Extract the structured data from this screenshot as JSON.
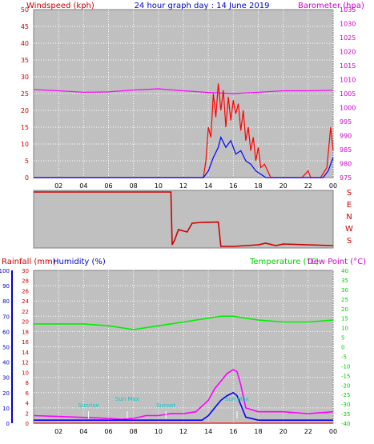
{
  "header": {
    "left_title": "Windspeed (kph)",
    "center_title": "24 hour graph day : 14 June 2019",
    "right_title": "Barometer (hpa)"
  },
  "colors": {
    "background": "#c0c0c0",
    "grid": "#ffffff",
    "wind_speed": "#ff0000",
    "wind_gust": "#ff0000",
    "wind_avg": "#0000ff",
    "barometer": "#ff00ff",
    "direction": "#cc0000",
    "rain": "#ff0000",
    "humidity": "#0000ff",
    "temperature": "#00ee00",
    "dew_point": "#ff00ff",
    "left_axis_text": "#cc0000",
    "right_axis_text": "#cc00cc",
    "temp_axis_text": "#00cc00",
    "sun_labels": "#00cccc"
  },
  "x_ticks": [
    "02",
    "04",
    "06",
    "08",
    "10",
    "12",
    "14",
    "16",
    "18",
    "20",
    "22",
    "00"
  ],
  "direction_labels": [
    "S",
    "E",
    "N",
    "W",
    "S"
  ],
  "bottom": {
    "rain_label": "Rainfall (mm)",
    "humidity_label": "Humidity (%)",
    "temp_label": "Temperature (°C)",
    "dew_label": "Dew Point (°C)",
    "sun_events": [
      {
        "label": "Sunrise",
        "hour": 4.4
      },
      {
        "label": "Sun Max",
        "hour": 7.5
      },
      {
        "label": "Sunset",
        "hour": 10.6
      },
      {
        "label": "Sun Max",
        "hour": 16.3
      }
    ]
  },
  "chart_data": [
    {
      "type": "line",
      "title": "",
      "x_range": [
        0,
        24
      ],
      "ylim_left": [
        0,
        50
      ],
      "ylim_right": [
        975,
        1035
      ],
      "yticks_left": [
        "0",
        "5",
        "10",
        "15",
        "20",
        "25",
        "30",
        "35",
        "40",
        "45",
        "50"
      ],
      "yticks_right": [
        "975",
        "980",
        "985",
        "990",
        "995",
        "1000",
        "1005",
        "1010",
        "1015",
        "1020",
        "1025",
        "1030",
        "1035"
      ],
      "series": [
        {
          "axis": "left",
          "x": [
            0,
            13.6,
            13.8,
            14.0,
            14.2,
            14.4,
            14.6,
            14.8,
            15.0,
            15.2,
            15.4,
            15.6,
            15.8,
            16.0,
            16.2,
            16.4,
            16.6,
            16.8,
            17.0,
            17.2,
            17.4,
            17.6,
            17.8,
            18.0,
            18.2,
            18.5,
            19.0,
            21.0,
            21.5,
            22.0,
            22.2,
            23.0,
            23.5,
            23.8,
            24.0
          ],
          "y": [
            0,
            0,
            5,
            15,
            12,
            25,
            18,
            28,
            20,
            26,
            15,
            24,
            17,
            23,
            19,
            22,
            14,
            20,
            11,
            15,
            8,
            12,
            5,
            9,
            3,
            4,
            0,
            0,
            0,
            2,
            0,
            0,
            3,
            15,
            8
          ]
        },
        {
          "axis": "left",
          "x": [
            0,
            13.6,
            14.0,
            14.4,
            14.8,
            15.0,
            15.4,
            15.8,
            16.2,
            16.6,
            17.0,
            17.4,
            17.8,
            18.2,
            18.6,
            19.0,
            23.2,
            23.6,
            24.0
          ],
          "y": [
            0,
            0,
            2,
            6,
            9,
            12,
            9,
            11,
            7,
            8,
            5,
            4,
            2,
            1,
            0,
            0,
            0,
            2,
            6
          ]
        },
        {
          "axis": "right",
          "x": [
            0,
            2,
            4,
            6,
            8,
            10,
            12,
            14,
            16,
            18,
            20,
            22,
            24
          ],
          "y": [
            1006.5,
            1006.0,
            1005.5,
            1005.6,
            1006.3,
            1006.7,
            1006.0,
            1005.4,
            1005.0,
            1005.5,
            1006.0,
            1006.0,
            1006.2
          ]
        }
      ]
    },
    {
      "type": "line",
      "title": "",
      "x_range": [
        0,
        24
      ],
      "ylim": [
        0,
        360
      ],
      "series": [
        {
          "x": [
            0,
            11,
            11.1,
            11.3,
            11.6,
            12.3,
            12.7,
            13.5,
            14.8,
            15.0,
            16.0,
            17.0,
            18.0,
            18.6,
            19.4,
            20.0,
            22.0,
            24.0
          ],
          "y": [
            350,
            350,
            20,
            50,
            115,
            100,
            155,
            160,
            162,
            10,
            10,
            15,
            20,
            30,
            15,
            25,
            20,
            15
          ]
        }
      ]
    },
    {
      "type": "line",
      "title": "",
      "x_range": [
        0,
        24
      ],
      "ylim_humidity": [
        0,
        100
      ],
      "ylim_rain": [
        0,
        30
      ],
      "ylim_temp": [
        -40,
        40
      ],
      "yticks_humidity": [
        "0",
        "10",
        "20",
        "30",
        "40",
        "50",
        "60",
        "70",
        "80",
        "90",
        "100"
      ],
      "yticks_rain": [
        "0",
        "2",
        "4",
        "6",
        "8",
        "10",
        "12",
        "14",
        "16",
        "18",
        "20",
        "22",
        "24",
        "26",
        "28",
        "30"
      ],
      "yticks_temp": [
        "-40",
        "-35",
        "-30",
        "-25",
        "-20",
        "-15",
        "-10",
        "-5",
        "0",
        "5",
        "10",
        "15",
        "20",
        "25",
        "30",
        "35",
        "40"
      ],
      "series": [
        {
          "axis": "temp",
          "x": [
            0,
            2,
            4,
            6,
            7,
            8,
            9,
            10,
            11,
            12,
            13,
            14,
            15,
            16,
            17,
            18,
            20,
            22,
            24
          ],
          "y": [
            12,
            12,
            12,
            11,
            10,
            9,
            10,
            11,
            12,
            13,
            14,
            15,
            16,
            16,
            15,
            14,
            13,
            13,
            14
          ]
        },
        {
          "axis": "temp",
          "x": [
            0,
            2,
            4,
            6,
            7,
            8,
            9,
            10,
            11,
            12,
            13,
            14,
            14.5,
            15,
            15.5,
            16,
            16.3,
            16.6,
            17.0,
            18,
            20,
            22,
            24
          ],
          "y": [
            -36,
            -36.5,
            -37,
            -37.5,
            -38,
            -37.5,
            -36,
            -36,
            -35,
            -35,
            -34,
            -28,
            -22,
            -18,
            -14,
            -12,
            -13,
            -20,
            -32,
            -34,
            -34,
            -35,
            -34
          ]
        },
        {
          "axis": "humidity",
          "x": [
            0,
            2,
            4,
            6,
            8,
            10,
            12,
            13.5,
            14,
            14.5,
            15,
            15.5,
            16,
            16.3,
            16.6,
            17.0,
            18,
            20,
            22,
            24
          ],
          "y": [
            2,
            2,
            2,
            2,
            2,
            2,
            2,
            2,
            5,
            10,
            15,
            18,
            20,
            18,
            12,
            4,
            2,
            2,
            2,
            2
          ]
        },
        {
          "axis": "rain",
          "x": [
            0,
            24
          ],
          "y": [
            0,
            0
          ]
        }
      ]
    }
  ]
}
